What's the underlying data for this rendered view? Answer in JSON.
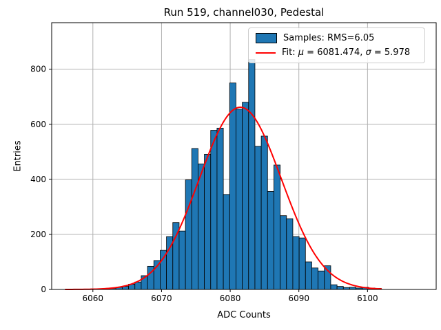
{
  "chart_data": {
    "type": "bar",
    "subtype": "histogram-with-gaussian-fit",
    "title": "Run 519, channel030, Pedestal",
    "xlabel": "ADC Counts",
    "ylabel": "Entries",
    "xlim": [
      6054,
      6110
    ],
    "ylim": [
      0,
      969
    ],
    "grid": true,
    "grid_color": "#b0b0b0",
    "x_ticks": [
      6060,
      6070,
      6080,
      6090,
      6100
    ],
    "y_ticks": [
      0,
      200,
      400,
      600,
      800
    ],
    "legend_position": "upper right",
    "histogram": {
      "label": "Samples: RMS=6.05",
      "rms": 6.05,
      "bin_start": 6056,
      "bin_width": 0.92,
      "color": "#1f77b4",
      "edge_color": "#000000",
      "counts": [
        1,
        0,
        1,
        1,
        2,
        2,
        3,
        4,
        8,
        11,
        19,
        27,
        50,
        84,
        105,
        142,
        192,
        243,
        212,
        398,
        512,
        456,
        491,
        578,
        586,
        345,
        750,
        655,
        680,
        835,
        520,
        557,
        356,
        452,
        268,
        257,
        192,
        187,
        100,
        78,
        67,
        86,
        17,
        11,
        7,
        8,
        5,
        8,
        5,
        4
      ]
    },
    "fit": {
      "label": "Fit: μ = 6081.474, σ = 5.978",
      "mu": 6081.474,
      "sigma": 5.978,
      "amplitude": 662,
      "x_start": 6056,
      "x_end": 6102,
      "color": "#ff0000"
    },
    "legend": {
      "entries": [
        {
          "swatch": "patch",
          "label": "Samples: RMS=6.05"
        },
        {
          "swatch": "line",
          "label": "Fit: μ = 6081.474, σ = 5.978"
        }
      ]
    }
  }
}
